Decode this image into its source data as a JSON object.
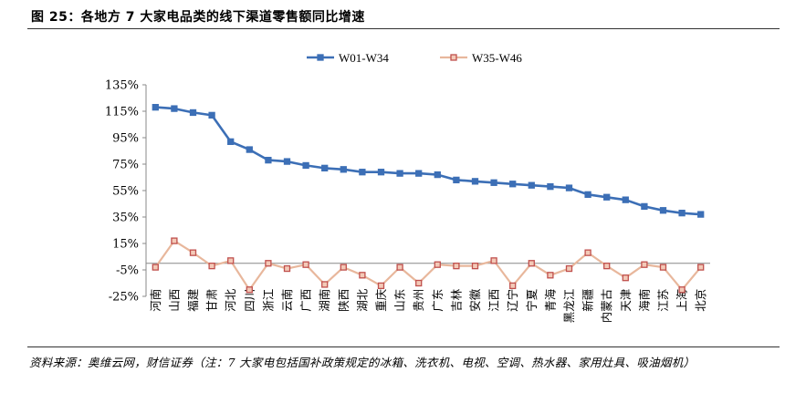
{
  "header": {
    "title": "图 25：各地方 7 大家电品类的线下渠道零售额同比增速"
  },
  "footer": {
    "source": "资料来源：奥维云网，财信证券（注：7 大家电包括国补政策规定的冰箱、洗衣机、电视、空调、热水器、家用灶具、吸油烟机）"
  },
  "colors": {
    "series1": "#3c6fb6",
    "series2": "#e8b79c",
    "series2_marker": "#c0504d"
  },
  "chart_data": {
    "type": "line",
    "title": "",
    "xlabel": "",
    "ylabel": "",
    "ylim": [
      -25,
      135
    ],
    "yticks": [
      -25,
      -5,
      15,
      35,
      55,
      75,
      95,
      115,
      135
    ],
    "ytick_labels": [
      "-25%",
      "-5%",
      "15%",
      "35%",
      "55%",
      "75%",
      "95%",
      "115%",
      "135%"
    ],
    "legend_position": "top-center",
    "grid": false,
    "categories": [
      "河南",
      "山西",
      "福建",
      "甘肃",
      "河北",
      "四川",
      "浙江",
      "云南",
      "广西",
      "湖南",
      "陕西",
      "湖北",
      "重庆",
      "山东",
      "贵州",
      "广东",
      "吉林",
      "安徽",
      "江西",
      "辽宁",
      "宁夏",
      "青海",
      "黑龙江",
      "新疆",
      "内蒙古",
      "天津",
      "海南",
      "江苏",
      "上海",
      "北京"
    ],
    "series": [
      {
        "name": "W01-W34",
        "values": [
          118,
          117,
          114,
          112,
          92,
          86,
          78,
          77,
          74,
          72,
          71,
          69,
          69,
          68,
          68,
          67,
          63,
          62,
          61,
          60,
          59,
          58,
          57,
          52,
          50,
          48,
          43,
          40,
          38,
          37
        ]
      },
      {
        "name": "W35-W46",
        "values": [
          -3,
          17,
          8,
          -2,
          2,
          -20,
          0,
          -4,
          -1,
          -16,
          -3,
          -9,
          -17,
          -3,
          -15,
          -1,
          -2,
          -2,
          2,
          -17,
          0,
          -9,
          -4,
          8,
          -2,
          -11,
          -1,
          -3,
          -20,
          -3
        ]
      }
    ]
  }
}
